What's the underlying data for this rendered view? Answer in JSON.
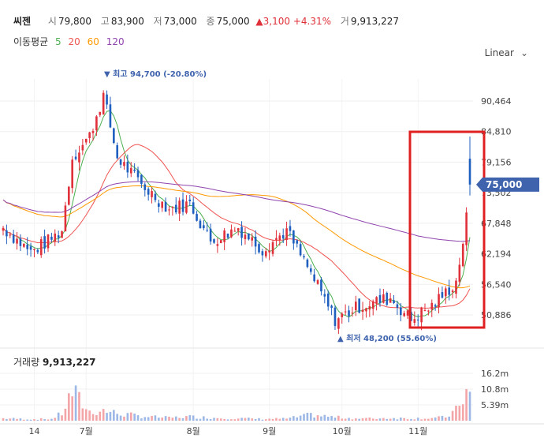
{
  "quote": {
    "symbol": "씨젠",
    "open_label": "시",
    "open": "79,800",
    "high_label": "고",
    "high": "83,900",
    "low_label": "저",
    "low": "73,000",
    "close_label": "종",
    "close": "75,000",
    "change_arrow": "▲",
    "change": "3,100",
    "change_pct": "+4.31%",
    "volume_label": "거",
    "volume": "9,913,227"
  },
  "ma_legend": {
    "label": "이동평균",
    "periods": [
      "5",
      "20",
      "60",
      "120"
    ],
    "colors": [
      "#4caf50",
      "#ef5350",
      "#ff9800",
      "#8e44ad"
    ]
  },
  "scale_button": {
    "label": "Linear",
    "icon": "chevron-down-icon"
  },
  "annotations": {
    "high": "▼ 최고 94,700 (-20.80%)",
    "low": "▲ 최저 48,200 (55.60%)",
    "current_price": "75,000"
  },
  "volume_panel": {
    "label": "거래량",
    "value": "9,913,227"
  },
  "colors": {
    "up": "#e0303a",
    "down": "#1f5fbf",
    "highlight_box": "#e02020",
    "badge": "#3f63ad"
  },
  "chart_data": {
    "type": "candlestick",
    "price_ticks": [
      "90,464",
      "84,810",
      "79,156",
      "73,502",
      "67,848",
      "62,194",
      "56,540",
      "50,886"
    ],
    "price_tick_values": [
      90464,
      84810,
      79156,
      73502,
      67848,
      62194,
      56540,
      50886
    ],
    "volume_ticks": [
      "16.2m",
      "10.8m",
      "5.39m"
    ],
    "volume_tick_values": [
      16.2,
      10.8,
      5.39
    ],
    "x_labels": [
      "14",
      "7월",
      "8월",
      "9월",
      "10월",
      "11월"
    ],
    "highlight": {
      "from_label": "11월",
      "description": "red box over last ~5 weeks"
    },
    "anchors": [
      [
        0,
        67000,
        0.8
      ],
      [
        8,
        62500,
        0.5
      ],
      [
        14,
        65000,
        0.6
      ],
      [
        17,
        66500,
        2.5
      ],
      [
        20,
        80000,
        9.8
      ],
      [
        25,
        84000,
        3.0
      ],
      [
        29,
        91500,
        3.5
      ],
      [
        33,
        80000,
        2.5
      ],
      [
        40,
        75000,
        1.5
      ],
      [
        48,
        70500,
        1.0
      ],
      [
        54,
        71500,
        1.4
      ],
      [
        60,
        64500,
        1.0
      ],
      [
        68,
        67000,
        0.8
      ],
      [
        75,
        63000,
        0.6
      ],
      [
        82,
        66500,
        0.7
      ],
      [
        89,
        58500,
        2.0
      ],
      [
        96,
        50000,
        1.2
      ],
      [
        103,
        52500,
        0.7
      ],
      [
        112,
        54000,
        0.9
      ],
      [
        118,
        50000,
        0.8
      ],
      [
        124,
        52500,
        0.9
      ],
      [
        128,
        55000,
        1.2
      ],
      [
        131,
        57000,
        3.5
      ],
      [
        133,
        64500,
        8.5
      ],
      [
        135,
        73000,
        10.8
      ]
    ],
    "last_candle": {
      "open": 79800,
      "high": 83900,
      "low": 73000,
      "close": 75000,
      "volume": 9.91
    },
    "moving_averages": [
      "MA5",
      "MA20",
      "MA60",
      "MA120"
    ]
  }
}
